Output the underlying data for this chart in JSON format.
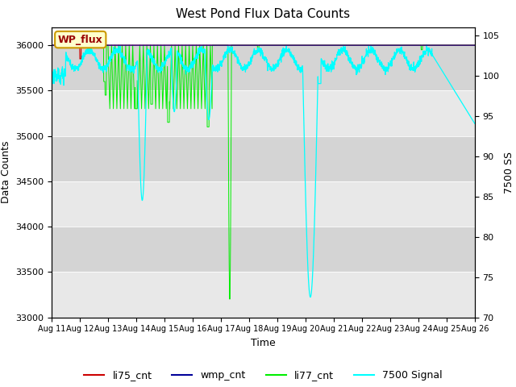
{
  "title": "West Pond Flux Data Counts",
  "xlabel": "Time",
  "ylabel_left": "Data Counts",
  "ylabel_right": "7500 SS",
  "ylim_left": [
    33000,
    36200
  ],
  "ylim_right": [
    70,
    106
  ],
  "yticks_left": [
    33000,
    33500,
    34000,
    34500,
    35000,
    35500,
    36000
  ],
  "yticks_right": [
    70,
    75,
    80,
    85,
    90,
    95,
    100,
    105
  ],
  "xtick_labels": [
    "Aug 11",
    "Aug 12",
    "Aug 13",
    "Aug 14",
    "Aug 15",
    "Aug 16",
    "Aug 17",
    "Aug 18",
    "Aug 19",
    "Aug 20",
    "Aug 21",
    "Aug 22",
    "Aug 23",
    "Aug 24",
    "Aug 25",
    "Aug 26"
  ],
  "legend_labels": [
    "li75_cnt",
    "wmp_cnt",
    "li77_cnt",
    "7500 Signal"
  ],
  "legend_colors": [
    "#cc0000",
    "#000099",
    "#00cc00",
    "#00cccc"
  ],
  "annotation_text": "WP_flux",
  "annotation_bg": "#ffffcc",
  "annotation_border": "#cc9900",
  "annotation_text_color": "#990000",
  "n_days": 15,
  "n_pts": 2160,
  "band_colors": [
    "#e8e8e8",
    "#d4d4d4"
  ]
}
